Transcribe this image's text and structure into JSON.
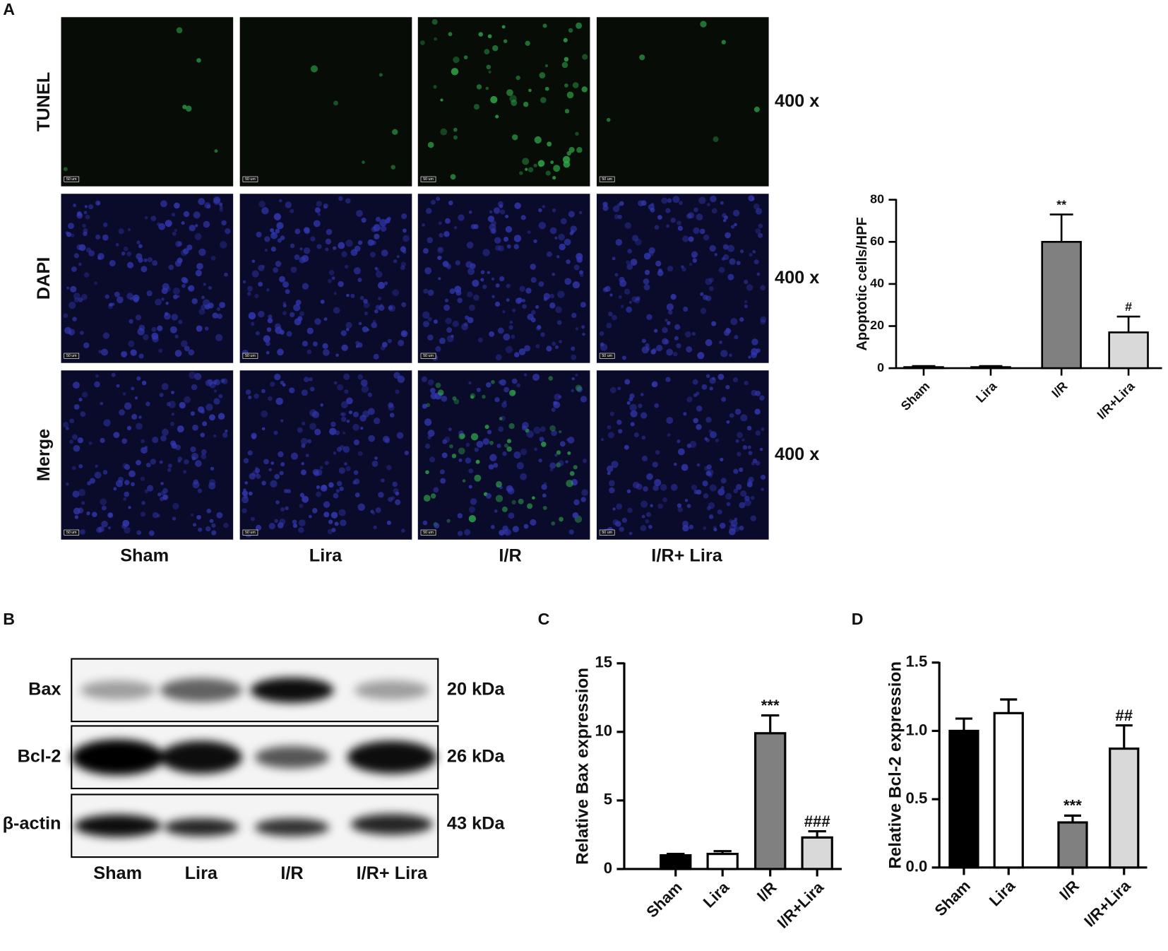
{
  "panels": {
    "a": {
      "letter": "A",
      "stains": [
        "TUNEL",
        "DAPI",
        "Merge"
      ],
      "magnification": "400 x",
      "scale_bar": "50 um",
      "groups": [
        "Sham",
        "Lira",
        "I/R",
        "I/R+ Lira"
      ]
    },
    "b": {
      "letter": "B",
      "proteins": [
        "Bax",
        "Bcl-2",
        "β-actin"
      ],
      "weights": [
        "20 kDa",
        "26 kDa",
        "43 kDa"
      ],
      "groups": [
        "Sham",
        "Lira",
        "I/R",
        "I/R+ Lira"
      ]
    },
    "c": {
      "letter": "C"
    },
    "d": {
      "letter": "D"
    }
  },
  "chart_data": [
    {
      "type": "bar",
      "y_label": "Apoptotic cells/HPF",
      "categories": [
        "Sham",
        "Lira",
        "I/R",
        "I/R+Lira"
      ],
      "values": [
        0.5,
        0.5,
        60,
        17
      ],
      "errors": [
        0.5,
        0.5,
        13,
        7.5
      ],
      "colors": [
        "#000000",
        "#ffffff",
        "#808080",
        "#d9d9d9"
      ],
      "annotations": [
        null,
        null,
        "**",
        "#"
      ],
      "ylim": [
        0,
        80
      ],
      "yticks": [
        0,
        20,
        40,
        60,
        80
      ]
    },
    {
      "type": "bar",
      "y_label": "Relative Bax expression",
      "categories": [
        "Sham",
        "Lira",
        "I/R",
        "I/R+Lira"
      ],
      "values": [
        1.0,
        1.1,
        9.9,
        2.3
      ],
      "errors": [
        0.1,
        0.2,
        1.3,
        0.45
      ],
      "colors": [
        "#000000",
        "#ffffff",
        "#808080",
        "#d9d9d9"
      ],
      "annotations": [
        null,
        null,
        "***",
        "###"
      ],
      "ylim": [
        0,
        15
      ],
      "yticks": [
        0,
        5,
        10,
        15
      ]
    },
    {
      "type": "bar",
      "y_label": "Relative Bcl-2 expression",
      "categories": [
        "Sham",
        "Lira",
        "I/R",
        "I/R+Lira"
      ],
      "values": [
        1.0,
        1.13,
        0.33,
        0.87
      ],
      "errors": [
        0.09,
        0.1,
        0.05,
        0.17
      ],
      "colors": [
        "#000000",
        "#ffffff",
        "#808080",
        "#d9d9d9"
      ],
      "annotations": [
        null,
        null,
        "***",
        "##"
      ],
      "ylim": [
        0,
        1.5
      ],
      "yticks": [
        {
          "value": 0,
          "label": "0.0"
        },
        0.5,
        {
          "value": 1,
          "label": "1.0"
        },
        1.5
      ]
    }
  ]
}
